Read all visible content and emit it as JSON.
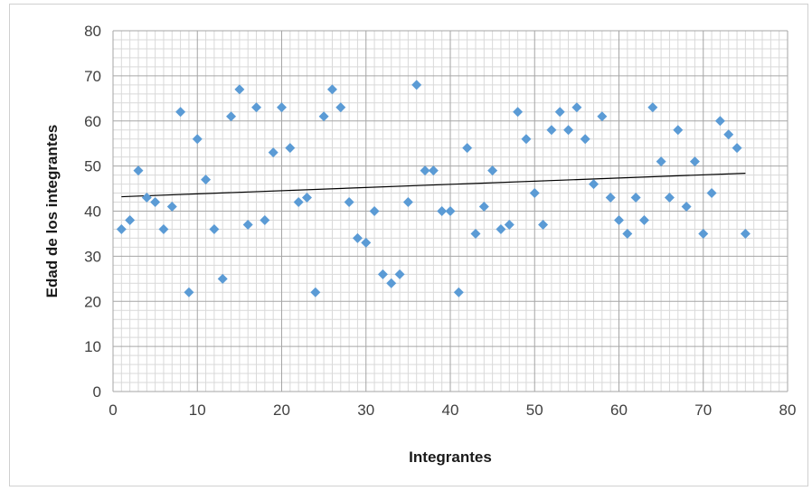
{
  "chart_data": {
    "type": "scatter",
    "title": "",
    "xlabel": "Integrantes",
    "ylabel": "Edad de los integrantes",
    "xlim": [
      0,
      80
    ],
    "ylim": [
      0,
      80
    ],
    "x_ticks": [
      "0",
      "10",
      "20",
      "30",
      "40",
      "50",
      "60",
      "70",
      "80"
    ],
    "y_ticks": [
      "0",
      "10",
      "20",
      "30",
      "40",
      "50",
      "60",
      "70",
      "80"
    ],
    "major_x_step": 10,
    "major_y_step": 10,
    "minor_x_step": 1,
    "minor_y_step": 2,
    "grid": true,
    "legend": "none",
    "marker": "diamond",
    "colors": {
      "marker": "#5b9bd5",
      "trendline": "#000000",
      "grid_major": "#a6a6a6",
      "grid_minor": "#d9d9d9"
    },
    "series": [
      {
        "x": [
          1,
          2,
          3,
          4,
          5,
          6,
          7,
          8,
          9,
          10,
          11,
          12,
          13,
          14,
          15,
          16,
          17,
          18,
          19,
          20,
          21,
          22,
          23,
          24,
          25,
          26,
          27,
          28,
          29,
          30,
          31,
          32,
          33,
          34,
          35,
          36,
          37,
          38,
          39,
          40,
          41,
          42,
          43,
          44,
          45,
          46,
          47,
          48,
          49,
          50,
          51,
          52,
          53,
          54,
          55,
          56,
          57,
          58,
          59,
          60,
          61,
          62,
          63,
          64,
          65,
          66,
          67,
          68,
          69,
          70,
          71,
          72,
          73,
          74,
          75
        ],
        "y": [
          36,
          38,
          49,
          43,
          42,
          36,
          41,
          62,
          22,
          56,
          47,
          36,
          25,
          61,
          67,
          37,
          63,
          38,
          53,
          63,
          54,
          42,
          43,
          22,
          61,
          67,
          63,
          42,
          34,
          33,
          40,
          26,
          24,
          26,
          42,
          68,
          49,
          49,
          40,
          40,
          22,
          54,
          35,
          41,
          49,
          36,
          37,
          62,
          56,
          44,
          37,
          58,
          62,
          58,
          63,
          56,
          46,
          61,
          43,
          38,
          35,
          43,
          38,
          63,
          51,
          43,
          58,
          41,
          51,
          35,
          44,
          60,
          57,
          54,
          35
        ]
      }
    ],
    "trendline": {
      "type": "linear",
      "x": [
        1,
        75
      ],
      "y": [
        43.2,
        48.4
      ]
    }
  }
}
